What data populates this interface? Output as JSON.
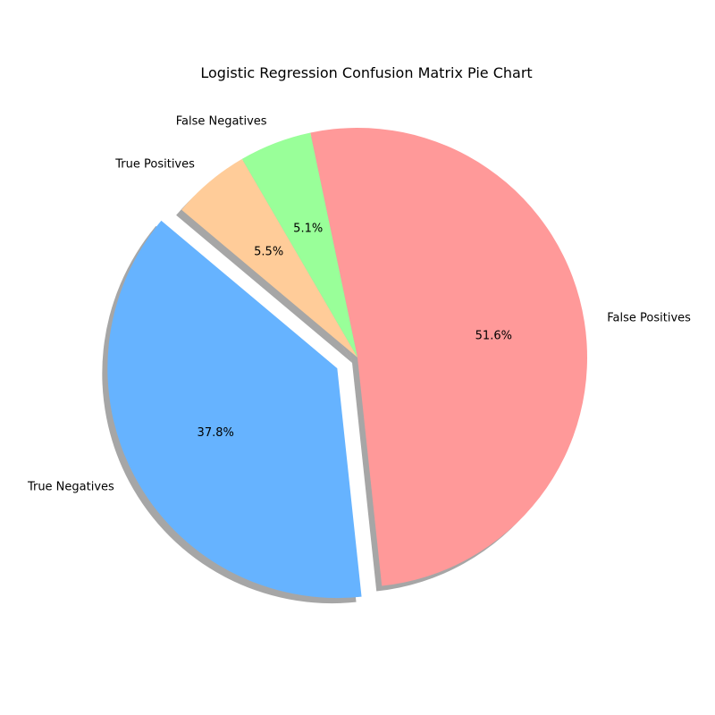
{
  "chart_data": {
    "type": "pie",
    "title": "Logistic Regression Confusion Matrix Pie Chart",
    "slices": [
      {
        "label": "True Negatives",
        "value": 37.8,
        "pct_label": "37.8%",
        "color": "#66b3ff",
        "exploded": true
      },
      {
        "label": "False Positives",
        "value": 51.6,
        "pct_label": "51.6%",
        "color": "#ff9999",
        "exploded": false
      },
      {
        "label": "False Negatives",
        "value": 5.1,
        "pct_label": "5.1%",
        "color": "#99ff99",
        "exploded": false
      },
      {
        "label": "True Positives",
        "value": 5.5,
        "pct_label": "5.5%",
        "color": "#ffcc99",
        "exploded": false
      }
    ],
    "start_angle_deg": 140,
    "shadow": true,
    "legend": "none"
  }
}
